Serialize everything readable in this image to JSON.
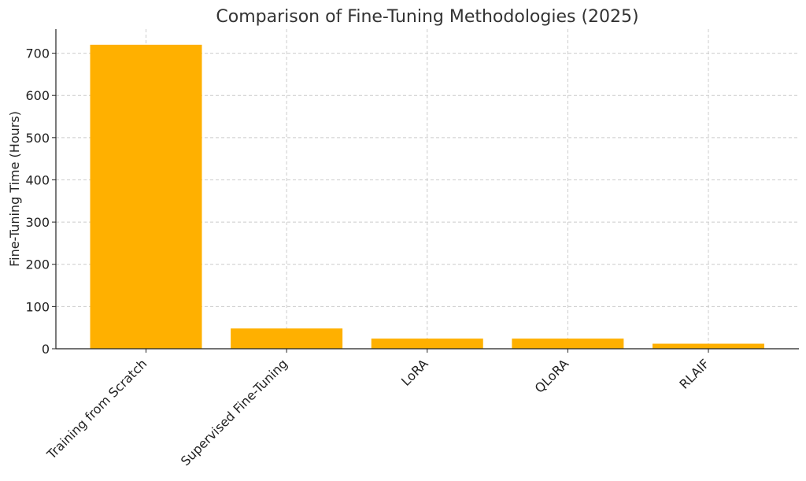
{
  "chart_data": {
    "type": "bar",
    "title": "Comparison of Fine-Tuning Methodologies (2025)",
    "xlabel": "",
    "ylabel": "Fine-Tuning Time (Hours)",
    "categories": [
      "Training from Scratch",
      "Supervised Fine-Tuning",
      "LoRA",
      "QLoRA",
      "RLAIF"
    ],
    "values": [
      720,
      48,
      24,
      24,
      12
    ],
    "ylim": [
      0,
      757
    ],
    "yticks": [
      0,
      100,
      200,
      300,
      400,
      500,
      600,
      700
    ],
    "bar_color": "#ffb000",
    "grid": true,
    "legend": "none"
  }
}
